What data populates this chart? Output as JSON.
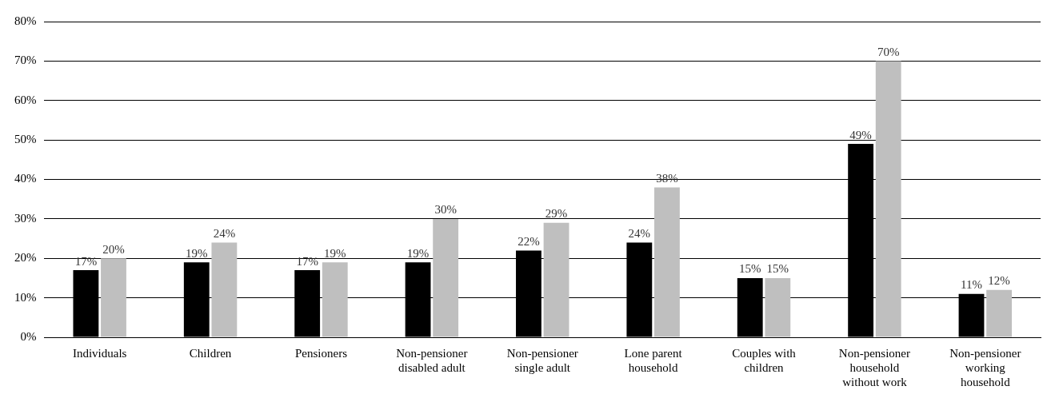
{
  "chart_data": {
    "type": "bar",
    "categories": [
      "Individuals",
      "Children",
      "Pensioners",
      "Non-pensioner disabled adult",
      "Non-pensioner single adult",
      "Lone parent household",
      "Couples with children",
      "Non-pensioner household without work",
      "Non-pensioner working household"
    ],
    "series": [
      {
        "color": "#000000",
        "values": [
          17,
          19,
          17,
          19,
          22,
          24,
          15,
          49,
          11
        ],
        "value_labels": [
          "17%",
          "19%",
          "17%",
          "19%",
          "22%",
          "24%",
          "15%",
          "49%",
          "11%"
        ]
      },
      {
        "color": "#bfbfbf",
        "values": [
          20,
          24,
          19,
          30,
          29,
          38,
          15,
          70,
          12
        ],
        "value_labels": [
          "20%",
          "24%",
          "19%",
          "30%",
          "29%",
          "38%",
          "15%",
          "70%",
          "12%"
        ]
      }
    ],
    "ylim": [
      0,
      80
    ],
    "yticks": [
      {
        "value": 0,
        "label": "0%"
      },
      {
        "value": 10,
        "label": "10%"
      },
      {
        "value": 20,
        "label": "20%"
      },
      {
        "value": 30,
        "label": "30%"
      },
      {
        "value": 40,
        "label": "40%"
      },
      {
        "value": 50,
        "label": "50%"
      },
      {
        "value": 60,
        "label": "60%"
      },
      {
        "value": 70,
        "label": "70%"
      },
      {
        "value": 80,
        "label": "80%"
      }
    ],
    "grid": "y",
    "legend": false
  }
}
